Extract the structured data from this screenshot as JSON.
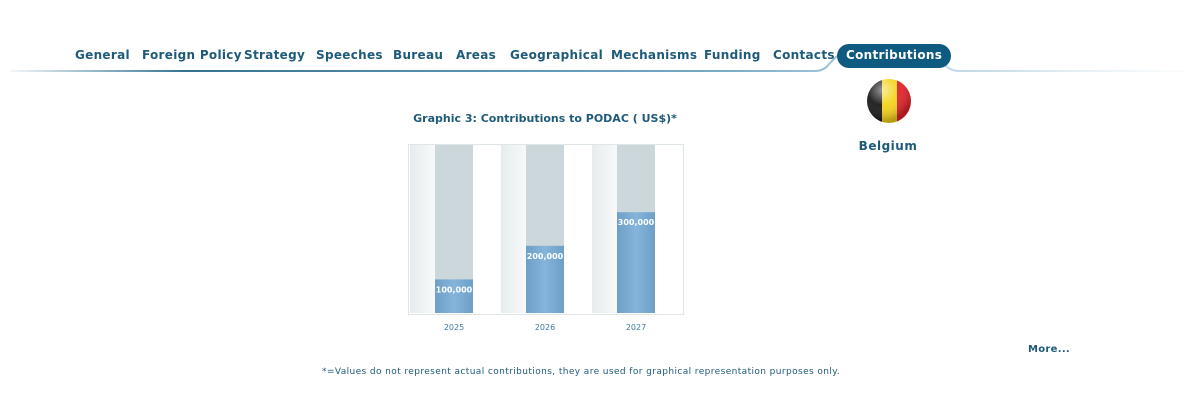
{
  "nav": {
    "items": [
      {
        "label": "General"
      },
      {
        "label": "Foreign Policy"
      },
      {
        "label": "Strategy"
      },
      {
        "label": "Speeches"
      },
      {
        "label": "Bureau"
      },
      {
        "label": "Areas"
      },
      {
        "label": "Geographical"
      },
      {
        "label": "Mechanisms"
      },
      {
        "label": "Funding"
      },
      {
        "label": "Contacts"
      },
      {
        "label": "Contributions"
      }
    ],
    "active_index": 10
  },
  "country": {
    "name": "Belgium",
    "flag_colors": [
      "#1a1a1a",
      "#f5d31c",
      "#e3232b"
    ]
  },
  "more_link": "More...",
  "footnote": "*=Values do not represent actual contributions, they are used for graphical representation purposes only.",
  "colors": {
    "accent": "#0e5a80",
    "text": "#1f5a7a",
    "bar": "#80b0d8",
    "track": "#ccd7db"
  },
  "chart_data": {
    "type": "bar",
    "title": "Graphic 3: Contributions to PODAC ( US$)*",
    "categories": [
      "2025",
      "2026",
      "2027"
    ],
    "values": [
      100000,
      200000,
      300000
    ],
    "value_labels": [
      "100,000",
      "200,000",
      "300,000"
    ],
    "ylim": [
      0,
      500000
    ],
    "xlabel": "",
    "ylabel": "",
    "grid": false
  }
}
